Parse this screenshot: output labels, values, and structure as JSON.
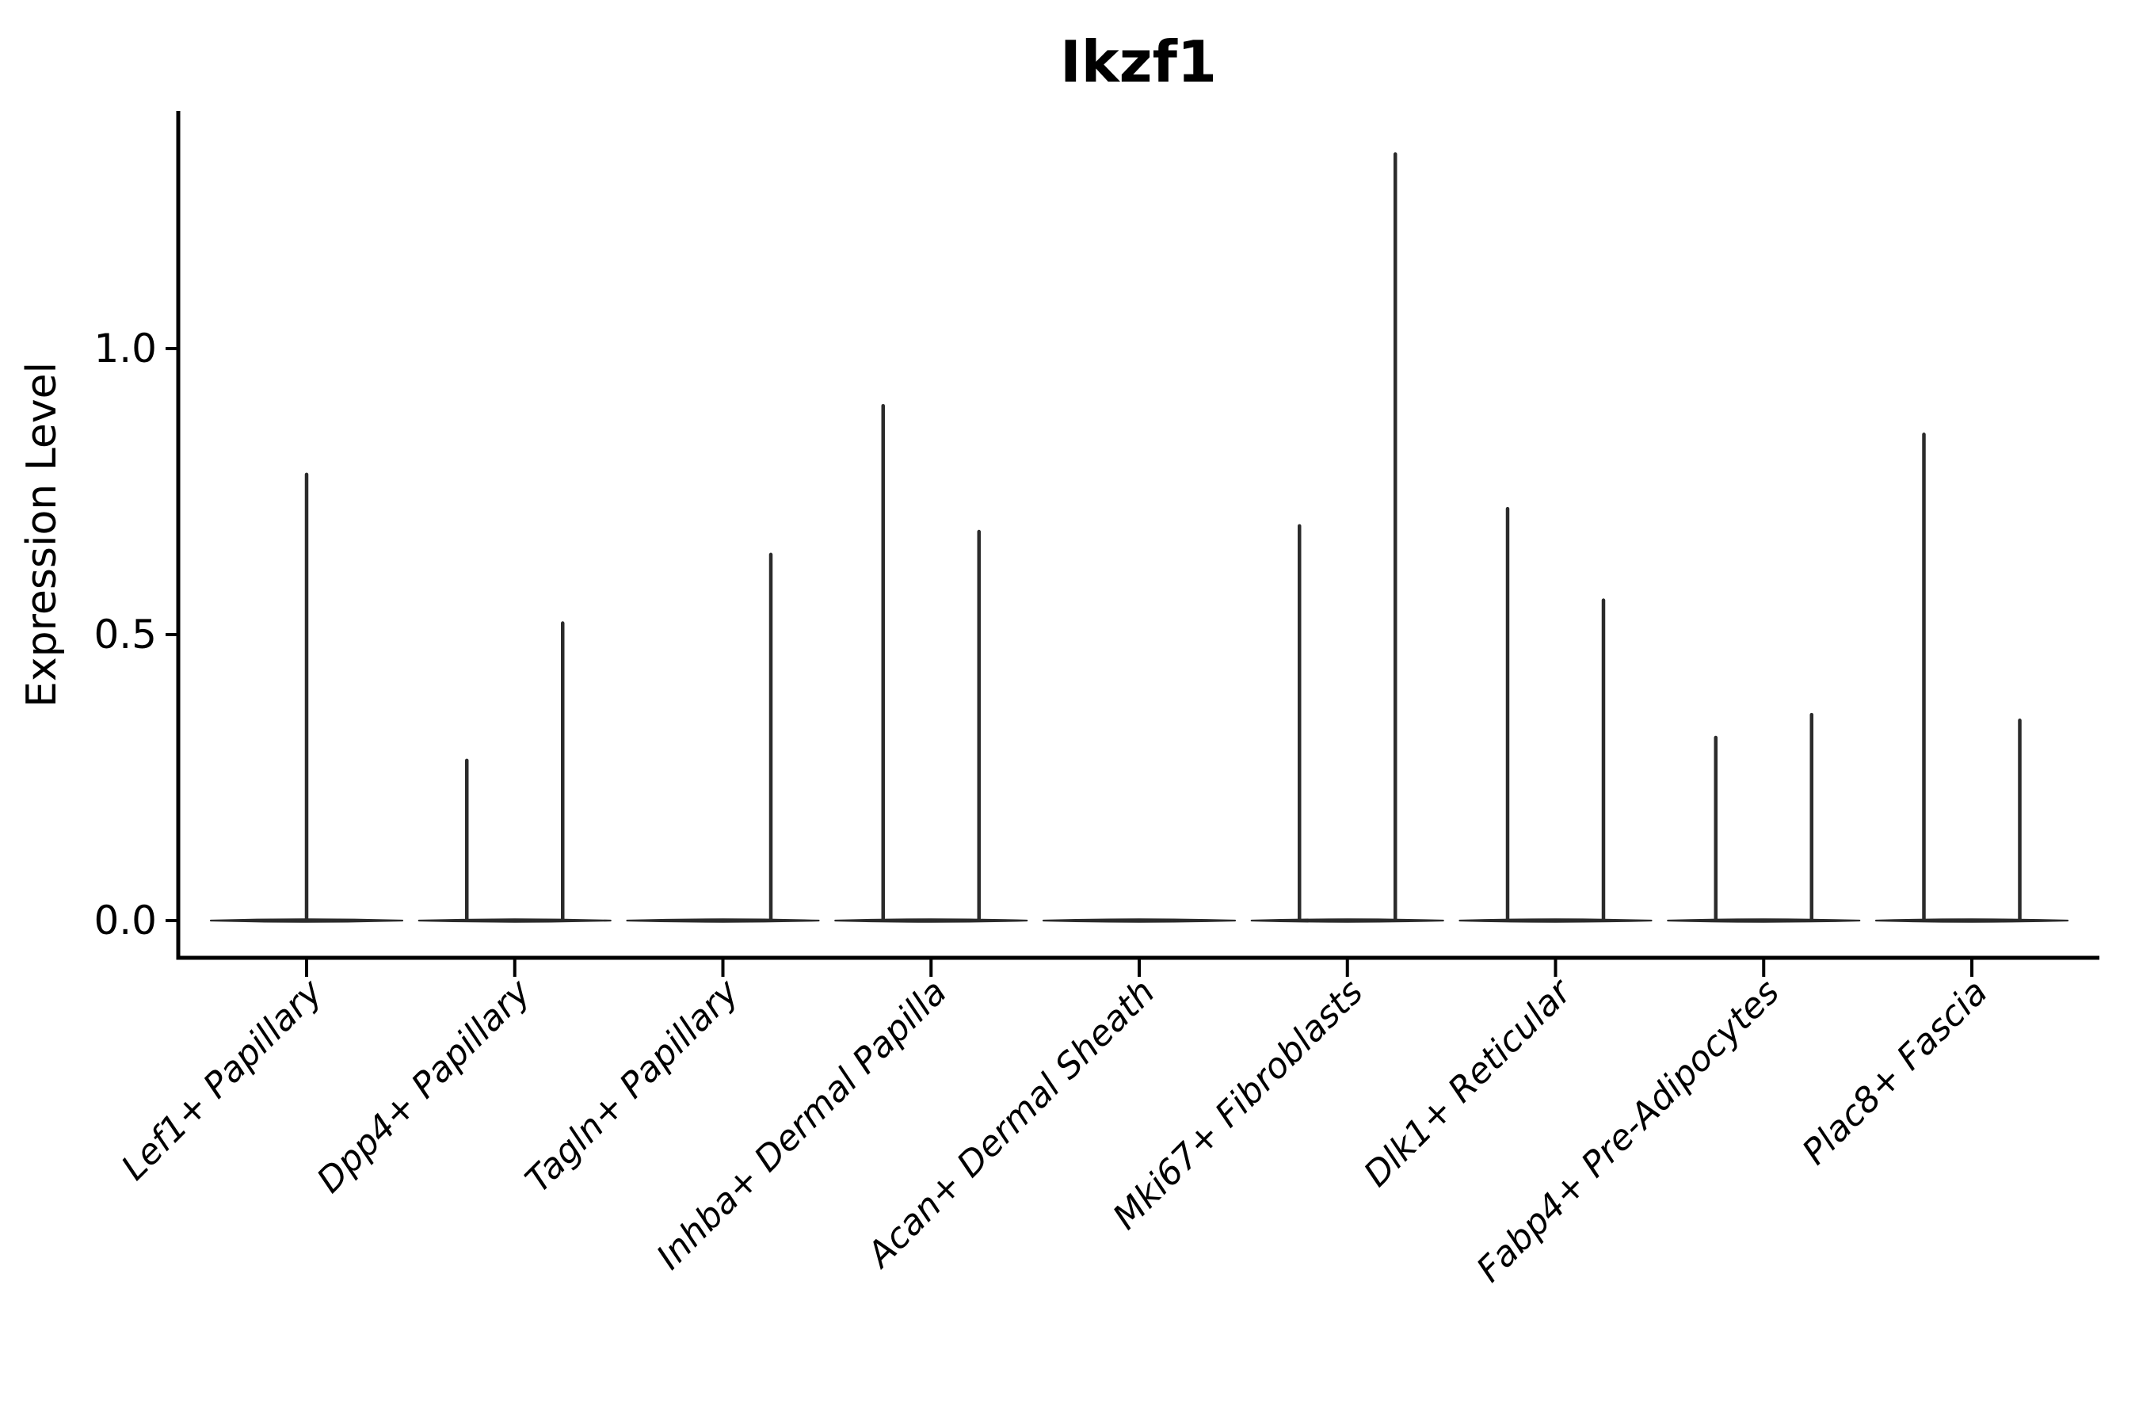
{
  "chart_data": {
    "type": "violin",
    "title": "Ikzf1",
    "ylabel": "Expression Level",
    "xlabel": "",
    "grid": false,
    "legend": null,
    "background": "#ffffff",
    "ink_color": "#000000",
    "violin_color": "#2b2b2b",
    "ylim": [
      -0.07,
      1.42
    ],
    "yticks": [
      {
        "label": "0.0",
        "value": 0.0
      },
      {
        "label": "0.5",
        "value": 0.5
      },
      {
        "label": "1.0",
        "value": 1.0
      }
    ],
    "categories": [
      "Lef1+ Papillary",
      "Dpp4+ Papillary",
      "Tagln+ Papillary",
      "Inhba+ Dermal Papilla",
      "Acan+ Dermal Sheath",
      "Mki67+ Fibroblasts",
      "Dlk1+ Reticular",
      "Fabp4+ Pre-Adipocytes",
      "Plac8+ Fascia"
    ],
    "violins": [
      {
        "category": "Lef1+ Papillary",
        "baseline": 0.0,
        "spikes": [
          {
            "offset": 0.0,
            "max": 0.78
          }
        ]
      },
      {
        "category": "Dpp4+ Papillary",
        "baseline": 0.0,
        "spikes": [
          {
            "offset": -0.25,
            "max": 0.28
          },
          {
            "offset": 0.25,
            "max": 0.52
          }
        ]
      },
      {
        "category": "Tagln+ Papillary",
        "baseline": 0.0,
        "spikes": [
          {
            "offset": 0.25,
            "max": 0.64
          }
        ]
      },
      {
        "category": "Inhba+ Dermal Papilla",
        "baseline": 0.0,
        "spikes": [
          {
            "offset": -0.25,
            "max": 0.9
          },
          {
            "offset": 0.25,
            "max": 0.68
          }
        ]
      },
      {
        "category": "Acan+ Dermal Sheath",
        "baseline": 0.0,
        "spikes": []
      },
      {
        "category": "Mki67+ Fibroblasts",
        "baseline": 0.0,
        "spikes": [
          {
            "offset": -0.25,
            "max": 0.69
          },
          {
            "offset": 0.25,
            "max": 1.34
          }
        ]
      },
      {
        "category": "Dlk1+ Reticular",
        "baseline": 0.0,
        "spikes": [
          {
            "offset": -0.25,
            "max": 0.72
          },
          {
            "offset": 0.25,
            "max": 0.56
          }
        ]
      },
      {
        "category": "Fabp4+ Pre-Adipocytes",
        "baseline": 0.0,
        "spikes": [
          {
            "offset": -0.25,
            "max": 0.32
          },
          {
            "offset": 0.25,
            "max": 0.36
          }
        ]
      },
      {
        "category": "Plac8+ Fascia",
        "baseline": 0.0,
        "spikes": [
          {
            "offset": -0.25,
            "max": 0.85
          },
          {
            "offset": 0.25,
            "max": 0.35
          }
        ]
      }
    ]
  }
}
